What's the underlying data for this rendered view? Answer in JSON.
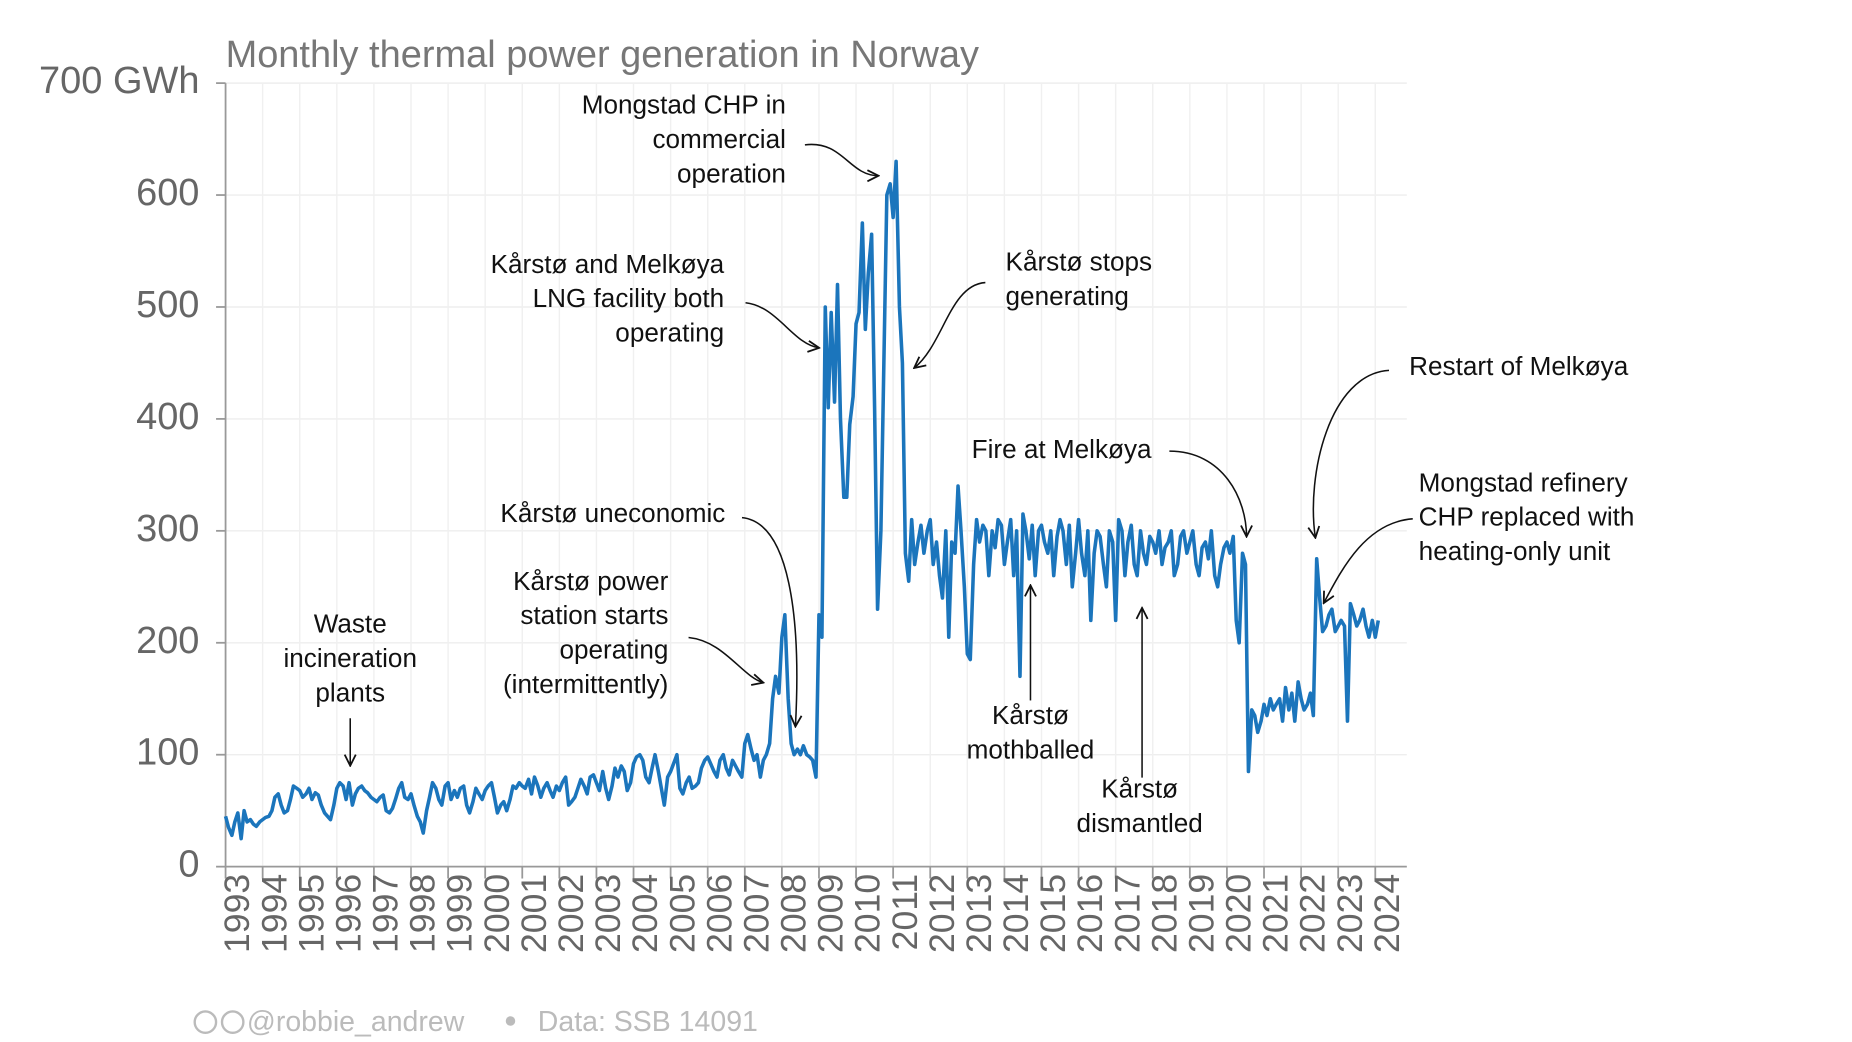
{
  "chart_data": {
    "type": "line",
    "title": "Monthly thermal power generation in Norway",
    "color": "#1b75bc",
    "grid": true,
    "xlim": [
      1993,
      2024.85
    ],
    "xticks": [
      1993,
      1994,
      1995,
      1996,
      1997,
      1998,
      1999,
      2000,
      2001,
      2002,
      2003,
      2004,
      2005,
      2006,
      2007,
      2008,
      2009,
      2010,
      2011,
      2012,
      2013,
      2014,
      2015,
      2016,
      2017,
      2018,
      2019,
      2020,
      2021,
      2022,
      2023,
      2024
    ],
    "ylim": [
      0,
      700
    ],
    "yticks": [
      0,
      100,
      200,
      300,
      400,
      500,
      600,
      {
        "value": 700,
        "label": "700 GWh"
      }
    ],
    "x": [
      1993,
      1993.08,
      1993.17,
      1993.25,
      1993.33,
      1993.42,
      1993.5,
      1993.58,
      1993.67,
      1993.75,
      1993.83,
      1993.92,
      1994,
      1994.08,
      1994.17,
      1994.25,
      1994.33,
      1994.42,
      1994.5,
      1994.58,
      1994.67,
      1994.75,
      1994.83,
      1994.92,
      1995,
      1995.08,
      1995.17,
      1995.25,
      1995.33,
      1995.42,
      1995.5,
      1995.58,
      1995.67,
      1995.75,
      1995.83,
      1995.92,
      1996,
      1996.08,
      1996.17,
      1996.25,
      1996.33,
      1996.42,
      1996.5,
      1996.58,
      1996.67,
      1996.75,
      1996.83,
      1996.92,
      1997,
      1997.08,
      1997.17,
      1997.25,
      1997.33,
      1997.42,
      1997.5,
      1997.58,
      1997.67,
      1997.75,
      1997.83,
      1997.92,
      1998,
      1998.08,
      1998.17,
      1998.25,
      1998.33,
      1998.42,
      1998.5,
      1998.58,
      1998.67,
      1998.75,
      1998.83,
      1998.92,
      1999,
      1999.08,
      1999.17,
      1999.25,
      1999.33,
      1999.42,
      1999.5,
      1999.58,
      1999.67,
      1999.75,
      1999.83,
      1999.92,
      2000,
      2000.08,
      2000.17,
      2000.25,
      2000.33,
      2000.42,
      2000.5,
      2000.58,
      2000.67,
      2000.75,
      2000.83,
      2000.92,
      2001,
      2001.08,
      2001.17,
      2001.25,
      2001.33,
      2001.42,
      2001.5,
      2001.58,
      2001.67,
      2001.75,
      2001.83,
      2001.92,
      2002,
      2002.08,
      2002.17,
      2002.25,
      2002.33,
      2002.42,
      2002.5,
      2002.58,
      2002.67,
      2002.75,
      2002.83,
      2002.92,
      2003,
      2003.08,
      2003.17,
      2003.25,
      2003.33,
      2003.42,
      2003.5,
      2003.58,
      2003.67,
      2003.75,
      2003.83,
      2003.92,
      2004,
      2004.08,
      2004.17,
      2004.25,
      2004.33,
      2004.42,
      2004.5,
      2004.58,
      2004.67,
      2004.75,
      2004.83,
      2004.92,
      2005,
      2005.08,
      2005.17,
      2005.25,
      2005.33,
      2005.42,
      2005.5,
      2005.58,
      2005.67,
      2005.75,
      2005.83,
      2005.92,
      2006,
      2006.08,
      2006.17,
      2006.25,
      2006.33,
      2006.42,
      2006.5,
      2006.58,
      2006.67,
      2006.75,
      2006.83,
      2006.92,
      2007,
      2007.08,
      2007.17,
      2007.25,
      2007.33,
      2007.42,
      2007.5,
      2007.58,
      2007.67,
      2007.75,
      2007.83,
      2007.92,
      2008,
      2008.08,
      2008.17,
      2008.25,
      2008.33,
      2008.42,
      2008.5,
      2008.58,
      2008.67,
      2008.75,
      2008.83,
      2008.92,
      2009,
      2009.08,
      2009.17,
      2009.25,
      2009.33,
      2009.42,
      2009.5,
      2009.58,
      2009.67,
      2009.75,
      2009.83,
      2009.92,
      2010,
      2010.08,
      2010.17,
      2010.25,
      2010.33,
      2010.42,
      2010.5,
      2010.58,
      2010.67,
      2010.75,
      2010.83,
      2010.92,
      2011,
      2011.08,
      2011.17,
      2011.25,
      2011.33,
      2011.42,
      2011.5,
      2011.58,
      2011.67,
      2011.75,
      2011.83,
      2011.92,
      2012,
      2012.08,
      2012.17,
      2012.25,
      2012.33,
      2012.42,
      2012.5,
      2012.58,
      2012.67,
      2012.75,
      2012.83,
      2012.92,
      2013,
      2013.08,
      2013.17,
      2013.25,
      2013.33,
      2013.42,
      2013.5,
      2013.58,
      2013.67,
      2013.75,
      2013.83,
      2013.92,
      2014,
      2014.08,
      2014.17,
      2014.25,
      2014.33,
      2014.42,
      2014.5,
      2014.58,
      2014.67,
      2014.75,
      2014.83,
      2014.92,
      2015,
      2015.08,
      2015.17,
      2015.25,
      2015.33,
      2015.42,
      2015.5,
      2015.58,
      2015.67,
      2015.75,
      2015.83,
      2015.92,
      2016,
      2016.08,
      2016.17,
      2016.25,
      2016.33,
      2016.42,
      2016.5,
      2016.58,
      2016.67,
      2016.75,
      2016.83,
      2016.92,
      2017,
      2017.08,
      2017.17,
      2017.25,
      2017.33,
      2017.42,
      2017.5,
      2017.58,
      2017.67,
      2017.75,
      2017.83,
      2017.92,
      2018,
      2018.08,
      2018.17,
      2018.25,
      2018.33,
      2018.42,
      2018.5,
      2018.58,
      2018.67,
      2018.75,
      2018.83,
      2018.92,
      2019,
      2019.08,
      2019.17,
      2019.25,
      2019.33,
      2019.42,
      2019.5,
      2019.58,
      2019.67,
      2019.75,
      2019.83,
      2019.92,
      2020,
      2020.08,
      2020.17,
      2020.25,
      2020.33,
      2020.42,
      2020.5,
      2020.58,
      2020.67,
      2020.75,
      2020.83,
      2020.92,
      2021,
      2021.08,
      2021.17,
      2021.25,
      2021.33,
      2021.42,
      2021.5,
      2021.58,
      2021.67,
      2021.75,
      2021.83,
      2021.92,
      2022,
      2022.08,
      2022.17,
      2022.25,
      2022.33,
      2022.42,
      2022.5,
      2022.58,
      2022.67,
      2022.75,
      2022.83,
      2022.92,
      2023,
      2023.08,
      2023.17,
      2023.25,
      2023.33,
      2023.42,
      2023.5,
      2023.58,
      2023.67,
      2023.75,
      2023.83,
      2023.92,
      2024,
      2024.08
    ],
    "values": [
      45,
      35,
      28,
      40,
      48,
      25,
      50,
      40,
      42,
      38,
      36,
      40,
      42,
      44,
      45,
      50,
      62,
      65,
      55,
      48,
      50,
      60,
      72,
      70,
      68,
      62,
      65,
      70,
      60,
      66,
      64,
      55,
      48,
      45,
      42,
      55,
      70,
      75,
      72,
      60,
      75,
      55,
      65,
      70,
      72,
      68,
      66,
      62,
      60,
      58,
      62,
      64,
      50,
      48,
      52,
      60,
      70,
      75,
      62,
      60,
      65,
      55,
      45,
      40,
      30,
      50,
      62,
      75,
      70,
      60,
      55,
      72,
      75,
      60,
      68,
      62,
      70,
      72,
      55,
      48,
      58,
      70,
      65,
      60,
      68,
      72,
      75,
      62,
      48,
      55,
      58,
      50,
      60,
      72,
      70,
      75,
      72,
      70,
      78,
      65,
      80,
      72,
      62,
      70,
      75,
      68,
      62,
      72,
      68,
      75,
      80,
      55,
      58,
      62,
      70,
      78,
      72,
      65,
      80,
      82,
      75,
      68,
      85,
      70,
      60,
      72,
      88,
      80,
      90,
      85,
      68,
      75,
      92,
      98,
      100,
      95,
      80,
      75,
      88,
      100,
      85,
      70,
      55,
      80,
      85,
      92,
      100,
      70,
      65,
      75,
      80,
      70,
      72,
      75,
      88,
      95,
      98,
      92,
      85,
      80,
      95,
      100,
      88,
      82,
      95,
      90,
      85,
      80,
      110,
      118,
      105,
      95,
      100,
      80,
      95,
      100,
      110,
      150,
      170,
      155,
      205,
      225,
      150,
      110,
      100,
      105,
      100,
      108,
      100,
      98,
      95,
      80,
      225,
      205,
      500,
      410,
      495,
      415,
      520,
      400,
      330,
      330,
      395,
      420,
      485,
      495,
      575,
      480,
      530,
      565,
      410,
      230,
      300,
      450,
      600,
      610,
      580,
      630,
      500,
      450,
      280,
      255,
      310,
      270,
      290,
      305,
      280,
      300,
      310,
      270,
      290,
      260,
      240,
      300,
      205,
      290,
      280,
      340,
      300,
      250,
      190,
      185,
      270,
      310,
      290,
      305,
      300,
      260,
      300,
      285,
      310,
      305,
      270,
      290,
      310,
      260,
      300,
      170,
      315,
      300,
      275,
      305,
      260,
      300,
      305,
      290,
      280,
      300,
      260,
      295,
      310,
      300,
      270,
      305,
      250,
      280,
      310,
      280,
      260,
      300,
      220,
      280,
      300,
      295,
      270,
      250,
      300,
      290,
      220,
      310,
      300,
      260,
      290,
      305,
      270,
      260,
      300,
      280,
      270,
      295,
      290,
      280,
      300,
      270,
      285,
      290,
      300,
      260,
      270,
      295,
      300,
      280,
      290,
      300,
      270,
      260,
      285,
      290,
      275,
      300,
      260,
      250,
      270,
      285,
      290,
      280,
      295,
      220,
      200,
      280,
      270,
      85,
      140,
      135,
      120,
      130,
      145,
      135,
      150,
      140,
      145,
      150,
      130,
      160,
      140,
      155,
      130,
      165,
      150,
      140,
      145,
      155,
      135,
      275,
      240,
      210,
      215,
      225,
      230,
      210,
      215,
      220,
      215,
      130,
      235,
      225,
      215,
      220,
      230,
      215,
      205,
      220,
      205,
      220
    ],
    "annotations": [
      [
        "Waste",
        "incineration",
        "plants"
      ],
      [
        "Kårstø power",
        "station starts",
        "operating",
        "(intermittently)"
      ],
      [
        "Kårstø uneconomic"
      ],
      [
        "Kårstø and Melkøya",
        "LNG facility both",
        "operating"
      ],
      [
        "Mongstad CHP in",
        "commercial",
        "operation"
      ],
      [
        "Kårstø stops",
        "generating"
      ],
      [
        "Fire at Melkøya"
      ],
      [
        "Kårstø",
        "mothballed"
      ],
      [
        "Kårstø",
        "dismantled"
      ],
      [
        "Restart of Melkøya"
      ],
      [
        "Mongstad refinery",
        "CHP replaced with",
        "heating-only unit"
      ]
    ],
    "credit": "@robbie_andrew",
    "source": "Data: SSB 14091"
  }
}
